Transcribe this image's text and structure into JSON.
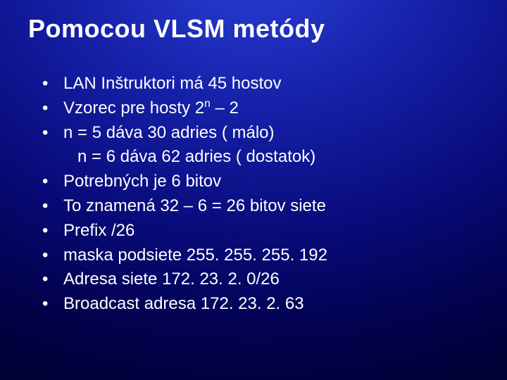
{
  "slide": {
    "title": "Pomocou VLSM metódy",
    "title_fontsize": 36,
    "title_font_family": "Comic Sans MS",
    "title_color": "#ffffff",
    "body_fontsize": 24,
    "body_font_family": "Arial",
    "body_color": "#ffffff",
    "bullets": [
      {
        "text": "LAN Inštruktori má 45 hostov"
      },
      {
        "text_pre": "Vzorec pre hosty    2",
        "sup": "n",
        "text_post": " – 2"
      },
      {
        "text": "n = 5 dáva 30 adries ( málo)",
        "sub": "n = 6 dáva 62 adries ( dostatok)"
      },
      {
        "text": "Potrebných je 6 bitov"
      },
      {
        "text": "To znamená  32 – 6 = 26 bitov siete"
      },
      {
        "text": "Prefix /26"
      },
      {
        "text": "maska podsiete  255. 255. 255. 192"
      },
      {
        "text": "Adresa siete  172. 23. 2. 0/26"
      },
      {
        "text": "Broadcast adresa 172. 23. 2. 63"
      }
    ],
    "background": {
      "type": "radial-gradient",
      "inner_color": "#2a3fd6",
      "outer_color": "#000028"
    }
  }
}
